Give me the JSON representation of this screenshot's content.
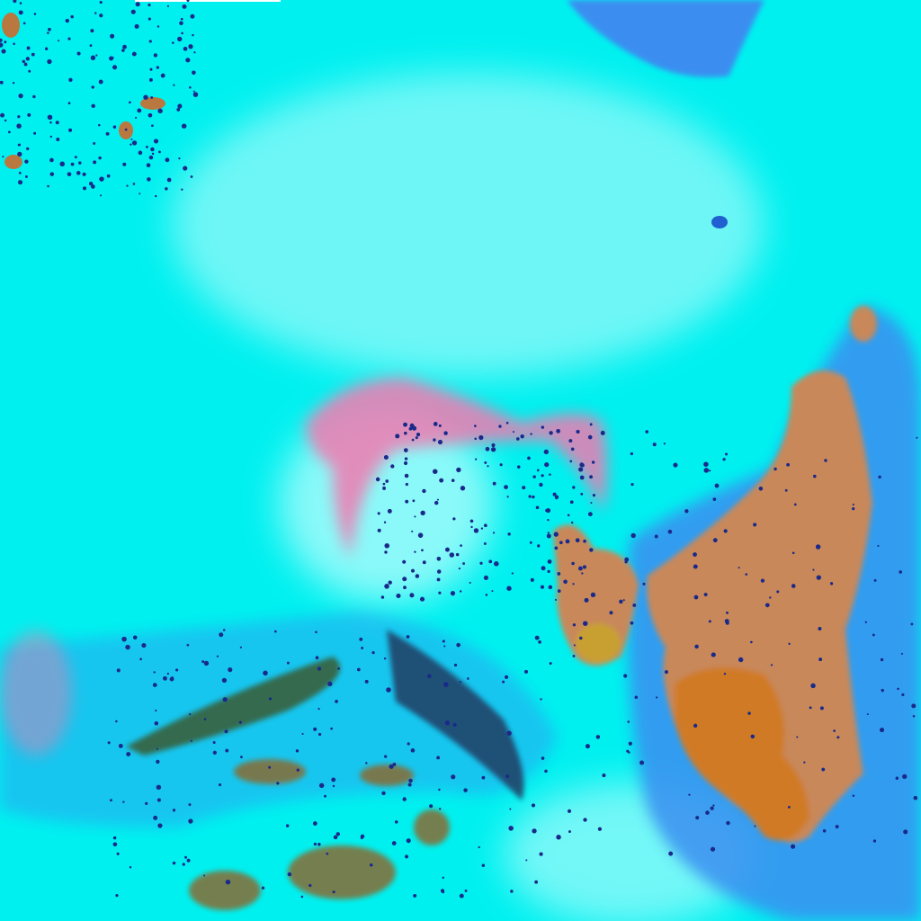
{
  "image": {
    "kind": "false-color satellite image",
    "colors": {
      "cloud": "#00f2f2",
      "haze": "#c8fafa",
      "water": "#3a8ef0",
      "land": "#c8885a",
      "land_bright": "#d08a30",
      "plume": "#f07ab0",
      "dark_speckle": "#1a2a8a"
    }
  }
}
